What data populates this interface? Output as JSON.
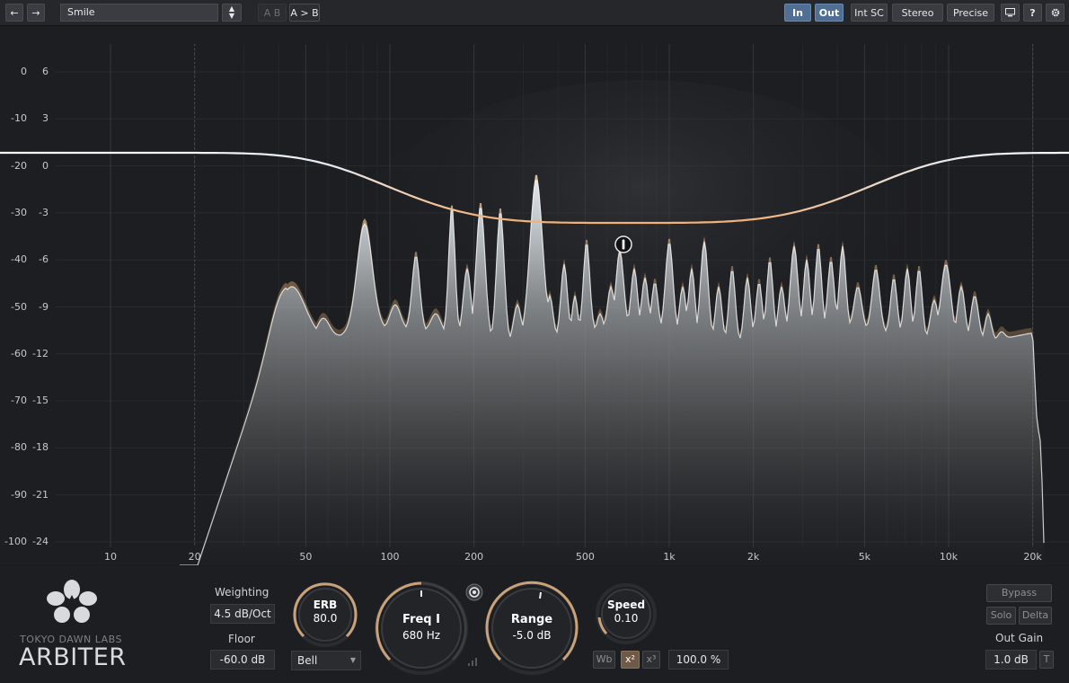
{
  "toolbar": {
    "back_label": "←",
    "forward_label": "→",
    "preset_value": "Smile",
    "ab_label": "A B",
    "copy_ab_label": "A > B",
    "in_label": "In",
    "out_label": "Out",
    "intsc_label": "Int SC",
    "stereo_label": "Stereo",
    "precise_label": "Precise",
    "help_label": "?",
    "colors": {
      "active": "#4f6f95"
    }
  },
  "display": {
    "left_db_labels": [
      "0",
      "-10",
      "-20",
      "-30",
      "-40",
      "-50",
      "-60",
      "-70",
      "-80",
      "-90",
      "-100"
    ],
    "right_db_labels": [
      "6",
      "3",
      "0",
      "-3",
      "-6",
      "-9",
      "-12",
      "-15",
      "-18",
      "-21",
      "-24"
    ],
    "freq_labels": [
      "10",
      "20",
      "50",
      "100",
      "200",
      "500",
      "1k",
      "2k",
      "5k",
      "10k",
      "20k"
    ]
  },
  "controls": {
    "brand_line1": "TOKYO DAWN LABS",
    "brand_line2": "ARBITER",
    "weighting_label": "Weighting",
    "weighting_value": "4.5 dB/Oct",
    "floor_label": "Floor",
    "floor_value": "-60.0 dB",
    "erb_label": "ERB",
    "erb_value": "80.0",
    "shape_value": "Bell",
    "freq_label": "Freq I",
    "freq_value": "680 Hz",
    "range_label": "Range",
    "range_value": "-5.0 dB",
    "speed_label": "Speed",
    "speed_value": "0.10",
    "wb_label": "Wb",
    "x2_label": "x²",
    "x3_label": "x³",
    "mix_value": "100.0 %",
    "bypass_label": "Bypass",
    "solo_label": "Solo",
    "delta_label": "Delta",
    "outgain_label": "Out Gain",
    "outgain_value": "1.0 dB",
    "t_label": "T"
  }
}
